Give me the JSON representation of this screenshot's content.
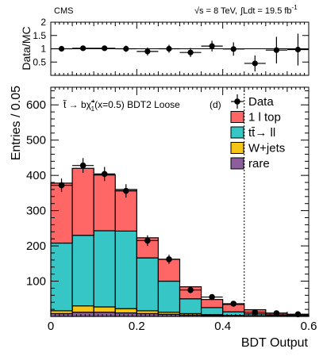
{
  "header": {
    "experiment": "CMS",
    "energy_root": "√s",
    "energy_rest": " = 8 TeV,",
    "lumi_integral": "∫",
    "lumi_rest": "Ldt = 19.5 fb",
    "lumi_exp": "-1"
  },
  "chart_data": [
    {
      "type": "scatter",
      "panel": "ratio",
      "ylabel": "Data/MC",
      "xlim": [
        0,
        0.6
      ],
      "ylim": [
        0,
        2.0
      ],
      "y_ticks": [
        "0",
        "0.5",
        "1",
        "1.5",
        "2"
      ],
      "reference_line": 1,
      "bin_edges": [
        0,
        0.05,
        0.1,
        0.15,
        0.2,
        0.25,
        0.3,
        0.35,
        0.4,
        0.45,
        0.5,
        0.55,
        0.6
      ],
      "values": [
        1.0,
        1.02,
        1.02,
        1.0,
        0.9,
        1.0,
        0.86,
        1.1,
        0.99,
        0.45,
        0.95,
        0.97
      ],
      "errors": [
        0.1,
        0.1,
        0.1,
        0.12,
        0.15,
        0.15,
        0.17,
        0.2,
        0.25,
        0.3,
        0.5,
        0.6
      ]
    },
    {
      "type": "bar",
      "subtype": "stacked-histogram",
      "panel": "main",
      "ylabel": "Entries / 0.05",
      "xlabel": "BDT Output",
      "xlim": [
        0,
        0.6
      ],
      "ylim": [
        0,
        650
      ],
      "x_ticks": [
        "0",
        "0.2",
        "0.4",
        "0.6"
      ],
      "y_ticks": [
        "100",
        "200",
        "300",
        "400",
        "500",
        "600"
      ],
      "annotation": {
        "process": "t̃ → bχ̃",
        "process_sup": "+",
        "process_sub": "1",
        "process_rest": "(x=0.5) BDT2 Loose",
        "panel_label": "(d)"
      },
      "cut_line_x": 0.45,
      "bin_edges": [
        0,
        0.05,
        0.1,
        0.15,
        0.2,
        0.25,
        0.3,
        0.35,
        0.4,
        0.45,
        0.5,
        0.55,
        0.6
      ],
      "series": [
        {
          "name": "rare",
          "color": "#8c5e9c",
          "values": [
            8,
            12,
            12,
            10,
            8,
            6,
            4,
            3,
            2,
            1,
            1,
            0.5
          ]
        },
        {
          "name": "W+jets",
          "color": "#f5c518",
          "values": [
            8,
            18,
            15,
            12,
            8,
            6,
            4,
            2,
            1,
            1,
            0.5,
            0.5
          ]
        },
        {
          "name": "tt̄→ ll",
          "color": "#36c6c6",
          "values": [
            192,
            200,
            216,
            220,
            150,
            88,
            42,
            20,
            10,
            5,
            3,
            2
          ]
        },
        {
          "name": "1 l top",
          "color": "#ff6666",
          "values": [
            170,
            190,
            158,
            118,
            57,
            62,
            34,
            23,
            21,
            12,
            5,
            3
          ]
        }
      ],
      "data": {
        "name": "Data",
        "values": [
          372,
          428,
          404,
          356,
          215,
          162,
          75,
          55,
          36,
          12,
          9,
          6
        ],
        "errors": [
          19,
          21,
          20,
          19,
          15,
          13,
          9,
          7,
          6,
          3.5,
          3,
          2.5
        ]
      },
      "legend": {
        "placement": "top-right",
        "entries": [
          "Data",
          "1 l top",
          "tt̄→ ll",
          "W+jets",
          "rare"
        ]
      }
    }
  ]
}
